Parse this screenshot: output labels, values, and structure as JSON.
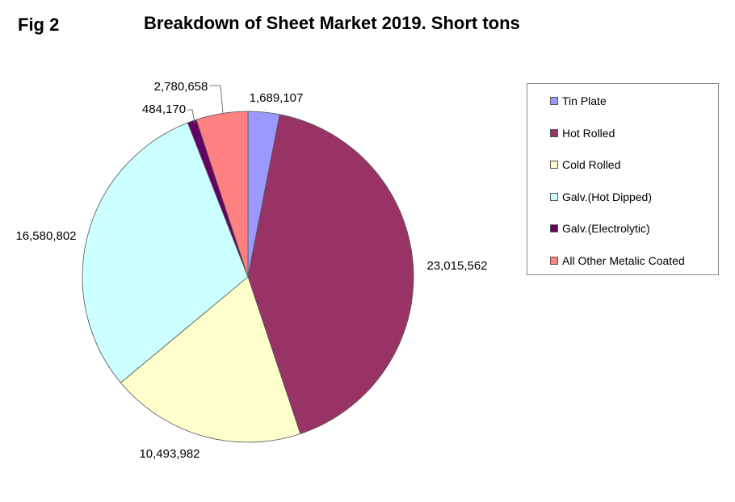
{
  "fig_label": "Fig 2",
  "chart_data": {
    "type": "pie",
    "title": "Breakdown of Sheet Market 2019. Short tons",
    "legend_position": "right",
    "slices": [
      {
        "name": "Tin Plate",
        "value": 1689107,
        "label": "1,689,107",
        "color": "#9999FF"
      },
      {
        "name": "Hot Rolled",
        "value": 23015562,
        "label": "23,015,562",
        "color": "#993366"
      },
      {
        "name": "Cold Rolled",
        "value": 10493982,
        "label": "10,493,982",
        "color": "#FFFFCC"
      },
      {
        "name": "Galv.(Hot Dipped)",
        "value": 16580802,
        "label": "16,580,802",
        "color": "#CCFFFF"
      },
      {
        "name": "Galv.(Electrolytic)",
        "value": 484170,
        "label": "484,170",
        "color": "#660066"
      },
      {
        "name": "All Other Metalic Coated",
        "value": 2780658,
        "label": "2,780,658",
        "color": "#FF8080"
      }
    ]
  }
}
